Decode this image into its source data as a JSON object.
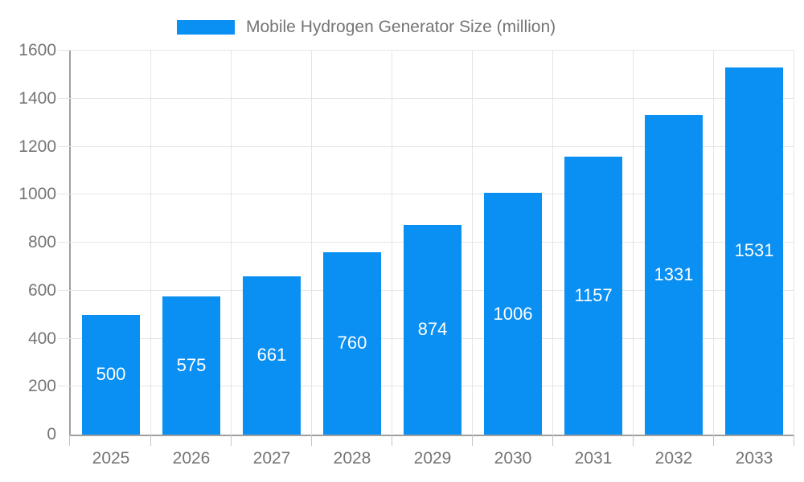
{
  "legend": {
    "label": "Mobile Hydrogen Generator Size (million)"
  },
  "chart_data": {
    "type": "bar",
    "title": "Mobile Hydrogen Generator Size (million)",
    "series_name": "Mobile Hydrogen Generator Size (million)",
    "categories": [
      "2025",
      "2026",
      "2027",
      "2028",
      "2029",
      "2030",
      "2031",
      "2032",
      "2033"
    ],
    "values": [
      500,
      575,
      661,
      760,
      874,
      1006,
      1157,
      1331,
      1531
    ],
    "xlabel": "",
    "ylabel": "",
    "ylim": [
      0,
      1600
    ],
    "ytick_step": 200,
    "ytick_labels": [
      "0",
      "200",
      "400",
      "600",
      "800",
      "1000",
      "1200",
      "1400",
      "1600"
    ],
    "grid": true,
    "legend_position": "top-center",
    "bar_value_labels": "inside-middle",
    "colors": {
      "bar": "#0a8ff2",
      "bar_label_text": "#ffffff",
      "gridline": "#e5e5e5",
      "axis": "#9e9e9e",
      "tick": "#c4c4c4",
      "text": "#757575",
      "background": "#ffffff"
    }
  }
}
